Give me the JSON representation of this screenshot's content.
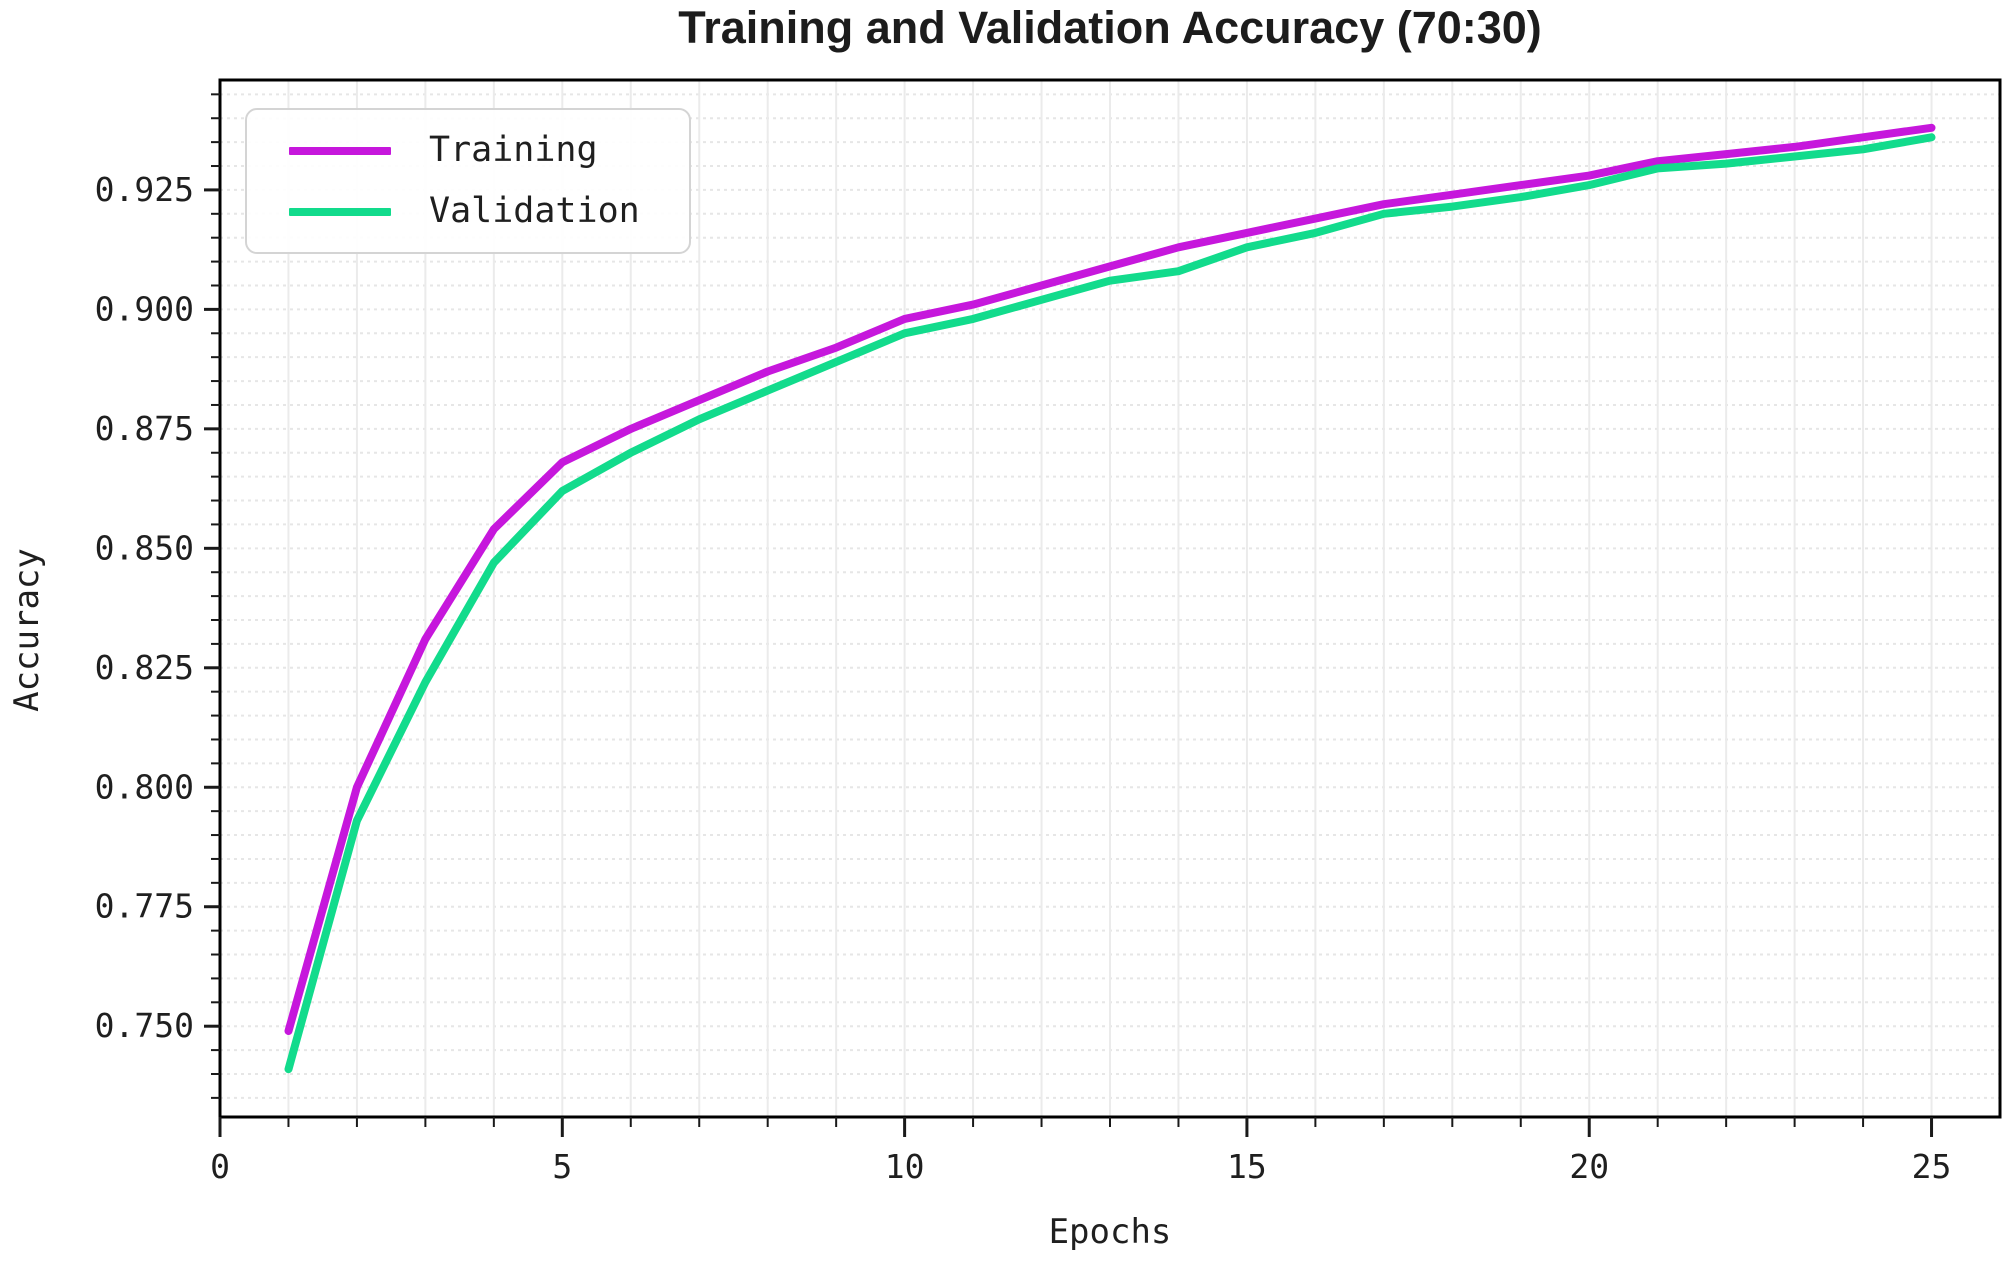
{
  "title": "Training and Validation Accuracy (70:30)",
  "axes": {
    "xlabel": "Epochs",
    "ylabel": "Accuracy"
  },
  "legend": {
    "items": [
      {
        "label": "Training",
        "color": "#c617dc"
      },
      {
        "label": "Validation",
        "color": "#12db8c"
      }
    ]
  },
  "colors": {
    "training": "#c617dc",
    "validation": "#12db8c",
    "grid_vertical": "#ebebeb",
    "grid_horizontal": "#e6e6e6",
    "spine": "#000000",
    "tick": "#1a1a1a",
    "text": "#1f1f1f",
    "background": "#ffffff"
  },
  "chart_data": {
    "type": "line",
    "title": "Training and Validation Accuracy (70:30)",
    "xlabel": "Epochs",
    "ylabel": "Accuracy",
    "x": [
      1,
      2,
      3,
      4,
      5,
      6,
      7,
      8,
      9,
      10,
      11,
      12,
      13,
      14,
      15,
      16,
      17,
      18,
      19,
      20,
      21,
      22,
      23,
      24,
      25
    ],
    "series": [
      {
        "name": "Training",
        "color": "#c617dc",
        "values": [
          0.749,
          0.8,
          0.831,
          0.854,
          0.868,
          0.875,
          0.881,
          0.887,
          0.892,
          0.898,
          0.901,
          0.905,
          0.909,
          0.913,
          0.916,
          0.919,
          0.922,
          0.924,
          0.926,
          0.928,
          0.931,
          0.9325,
          0.934,
          0.936,
          0.938
        ]
      },
      {
        "name": "Validation",
        "color": "#12db8c",
        "values": [
          0.741,
          0.793,
          0.822,
          0.847,
          0.862,
          0.87,
          0.877,
          0.883,
          0.889,
          0.895,
          0.898,
          0.902,
          0.906,
          0.908,
          0.913,
          0.916,
          0.92,
          0.9215,
          0.9235,
          0.926,
          0.9295,
          0.9305,
          0.932,
          0.9335,
          0.936
        ]
      }
    ],
    "xlim": [
      0,
      26
    ],
    "ylim": [
      0.731,
      0.948
    ],
    "xticks": [
      0,
      5,
      10,
      15,
      20,
      25
    ],
    "xtick_labels": [
      "0",
      "5",
      "10",
      "15",
      "20",
      "25"
    ],
    "yticks": [
      0.75,
      0.775,
      0.8,
      0.825,
      0.85,
      0.875,
      0.9,
      0.925
    ],
    "ytick_labels": [
      "0.750",
      "0.775",
      "0.800",
      "0.825",
      "0.850",
      "0.875",
      "0.900",
      "0.925"
    ],
    "minor_x_step": 1,
    "minor_y_step": 0.005,
    "grid": true,
    "legend_position": "upper left",
    "line_width": 8
  }
}
